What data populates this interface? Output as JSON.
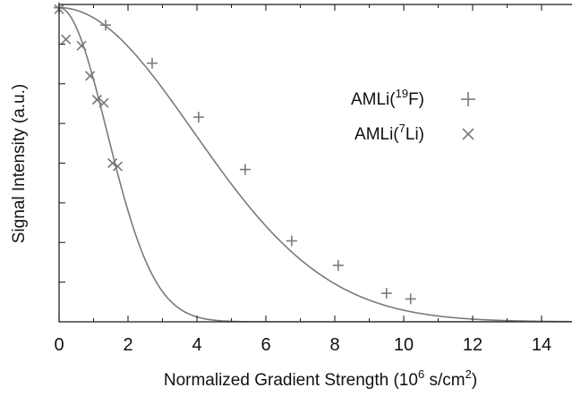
{
  "chart_data": {
    "type": "scatter",
    "xlabel": "Normalized Gradient Strength (10",
    "xlabel_exp": "6",
    "xlabel_unit": " s/cm",
    "xlabel_unit_exp": "2",
    "xlabel_close": ")",
    "ylabel": "Signal Intensity (a.u.)",
    "xlim": [
      0,
      15
    ],
    "ylim": [
      0,
      1
    ],
    "x_ticks": [
      "0",
      "2",
      "4",
      "6",
      "8",
      "10",
      "12",
      "14"
    ],
    "x_tick_values": [
      0,
      2,
      4,
      6,
      8,
      10,
      12,
      14
    ],
    "y_tick_values": [
      0.125,
      0.25,
      0.375,
      0.5,
      0.625,
      0.75,
      0.875
    ],
    "grid": false,
    "legend_position": "top-right",
    "series": [
      {
        "name": "AMLi(19F)",
        "legend_prefix": "AMLi(",
        "legend_sup": "19",
        "legend_suffix": "F)",
        "marker": "plus",
        "color": "#7a7a7a",
        "x": [
          0.0,
          1.35,
          2.7,
          4.05,
          5.4,
          6.75,
          8.1,
          9.5,
          10.2
        ],
        "y": [
          0.99,
          0.935,
          0.815,
          0.645,
          0.48,
          0.255,
          0.178,
          0.09,
          0.072
        ],
        "fit": {
          "model": "gaussian",
          "a": 0.99,
          "c": 0.033
        }
      },
      {
        "name": "AMLi(7Li)",
        "legend_prefix": "AMLi(",
        "legend_sup": "7",
        "legend_suffix": "Li)",
        "marker": "cross",
        "color": "#7a7a7a",
        "x": [
          0.0,
          0.2,
          0.4,
          0.65,
          0.9,
          1.1,
          1.3,
          1.55,
          1.7
        ],
        "y": [
          0.985,
          0.89,
          1.03,
          0.87,
          0.775,
          0.7,
          0.69,
          0.5,
          0.49
        ],
        "fit": {
          "model": "gaussian",
          "a": 0.99,
          "c": 0.26
        }
      }
    ]
  }
}
